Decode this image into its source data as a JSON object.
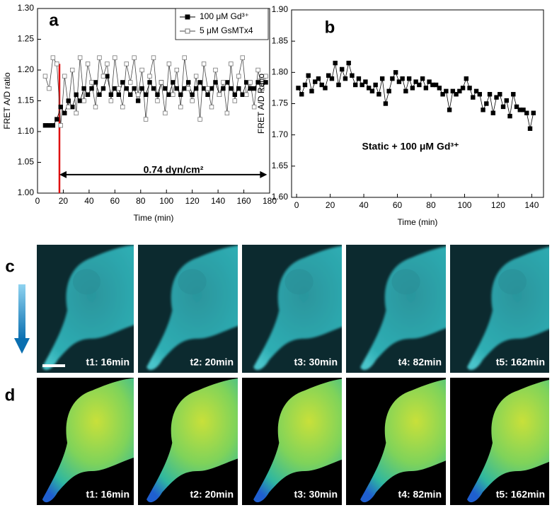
{
  "chart_data": [
    {
      "type": "line",
      "panel_label": "a",
      "xlabel": "Time (min)",
      "ylabel": "FRET A/D ratio",
      "xlim": [
        0,
        180
      ],
      "ylim": [
        1.0,
        1.3
      ],
      "xticks": [
        0,
        20,
        40,
        60,
        80,
        100,
        120,
        140,
        160,
        180
      ],
      "yticks": [
        {
          "value": 1.0,
          "label": "1.00"
        },
        {
          "value": 1.05,
          "label": "1.05"
        },
        {
          "value": 1.1,
          "label": "1.10"
        },
        {
          "value": 1.15,
          "label": "1.15"
        },
        {
          "value": 1.2,
          "label": "1.20"
        },
        {
          "value": 1.25,
          "label": "1.25"
        },
        {
          "value": 1.3,
          "label": "1.30"
        }
      ],
      "x": [
        6,
        9,
        12,
        15,
        18,
        21,
        24,
        27,
        30,
        33,
        36,
        39,
        42,
        45,
        48,
        51,
        54,
        57,
        60,
        63,
        66,
        69,
        72,
        75,
        78,
        81,
        84,
        87,
        90,
        93,
        96,
        99,
        102,
        105,
        108,
        111,
        114,
        117,
        120,
        123,
        126,
        129,
        132,
        135,
        138,
        141,
        144,
        147,
        150,
        153,
        156,
        159,
        162,
        165,
        168,
        171,
        174,
        177
      ],
      "series": [
        {
          "name": "100 μM Gd³⁺",
          "color": "#000000",
          "marker": "filled",
          "values": [
            1.11,
            1.11,
            1.11,
            1.12,
            1.14,
            1.13,
            1.15,
            1.14,
            1.16,
            1.15,
            1.17,
            1.16,
            1.17,
            1.18,
            1.16,
            1.17,
            1.19,
            1.16,
            1.17,
            1.16,
            1.18,
            1.17,
            1.16,
            1.17,
            1.15,
            1.17,
            1.16,
            1.18,
            1.17,
            1.16,
            1.18,
            1.17,
            1.16,
            1.18,
            1.17,
            1.16,
            1.17,
            1.18,
            1.16,
            1.17,
            1.18,
            1.17,
            1.16,
            1.17,
            1.18,
            1.16,
            1.17,
            1.18,
            1.17,
            1.16,
            1.17,
            1.16,
            1.18,
            1.17,
            1.17,
            1.18,
            1.17,
            1.18
          ]
        },
        {
          "name": "5 μM GsMTx4",
          "color": "#444444",
          "marker": "open",
          "values": [
            1.19,
            1.17,
            1.22,
            1.21,
            1.11,
            1.19,
            1.14,
            1.2,
            1.13,
            1.22,
            1.15,
            1.21,
            1.18,
            1.14,
            1.22,
            1.19,
            1.21,
            1.15,
            1.22,
            1.17,
            1.14,
            1.21,
            1.18,
            1.22,
            1.16,
            1.2,
            1.12,
            1.19,
            1.22,
            1.15,
            1.18,
            1.13,
            1.21,
            1.16,
            1.2,
            1.14,
            1.22,
            1.17,
            1.15,
            1.19,
            1.12,
            1.21,
            1.17,
            1.14,
            1.2,
            1.16,
            1.18,
            1.13,
            1.21,
            1.15,
            1.19,
            1.22,
            1.16,
            1.18,
            1.14,
            1.2,
            1.17,
            1.19
          ]
        }
      ],
      "legend": "upper right",
      "marker_line": {
        "x": 17,
        "color": "#e01010"
      },
      "arrow": {
        "x": [
          17,
          178
        ],
        "y": 1.03
      },
      "annotation": "0.74 dyn/cm²"
    },
    {
      "type": "line",
      "panel_label": "b",
      "xlabel": "Time (min)",
      "ylabel": "FRET A/D Ratio",
      "xlim": [
        -3,
        147
      ],
      "ylim": [
        1.6,
        1.9
      ],
      "xticks": [
        0,
        20,
        40,
        60,
        80,
        100,
        120,
        140
      ],
      "yticks": [
        {
          "value": 1.6,
          "label": "1.60"
        },
        {
          "value": 1.65,
          "label": "1.65"
        },
        {
          "value": 1.7,
          "label": "1.70"
        },
        {
          "value": 1.75,
          "label": "1.75"
        },
        {
          "value": 1.8,
          "label": "1.80"
        },
        {
          "value": 1.85,
          "label": "1.85"
        },
        {
          "value": 1.9,
          "label": "1.90"
        }
      ],
      "x": [
        1,
        3,
        5,
        7,
        9,
        11,
        13,
        15,
        17,
        19,
        21,
        23,
        25,
        27,
        29,
        31,
        33,
        35,
        37,
        39,
        41,
        43,
        45,
        47,
        49,
        51,
        53,
        55,
        57,
        59,
        61,
        63,
        65,
        67,
        69,
        71,
        73,
        75,
        77,
        79,
        81,
        83,
        85,
        87,
        89,
        91,
        93,
        95,
        97,
        99,
        101,
        103,
        105,
        107,
        109,
        111,
        113,
        115,
        117,
        119,
        121,
        123,
        125,
        127,
        129,
        131,
        133,
        135,
        137,
        139,
        141
      ],
      "series": [
        {
          "color": "#000000",
          "marker": "filled",
          "values": [
            1.775,
            1.765,
            1.78,
            1.795,
            1.77,
            1.785,
            1.79,
            1.78,
            1.775,
            1.795,
            1.79,
            1.815,
            1.78,
            1.805,
            1.79,
            1.815,
            1.795,
            1.78,
            1.79,
            1.78,
            1.785,
            1.775,
            1.77,
            1.78,
            1.765,
            1.79,
            1.75,
            1.77,
            1.79,
            1.8,
            1.785,
            1.79,
            1.77,
            1.79,
            1.775,
            1.785,
            1.78,
            1.79,
            1.775,
            1.785,
            1.78,
            1.78,
            1.775,
            1.765,
            1.77,
            1.74,
            1.77,
            1.765,
            1.77,
            1.775,
            1.79,
            1.775,
            1.76,
            1.77,
            1.765,
            1.74,
            1.75,
            1.765,
            1.735,
            1.76,
            1.765,
            1.745,
            1.755,
            1.73,
            1.765,
            1.745,
            1.74,
            1.74,
            1.735,
            1.71,
            1.735
          ]
        }
      ],
      "annotation": "Static + 100 μM Gd³⁺"
    }
  ],
  "image_panels": [
    {
      "label": "c",
      "captions": [
        "t1: 16min",
        "t2: 20min",
        "t3: 30min",
        "t4: 82min",
        "t5: 162min"
      ]
    },
    {
      "label": "d",
      "captions": [
        "t1: 16min",
        "t2: 20min",
        "t3: 30min",
        "t4: 82min",
        "t5: 162min"
      ]
    }
  ]
}
